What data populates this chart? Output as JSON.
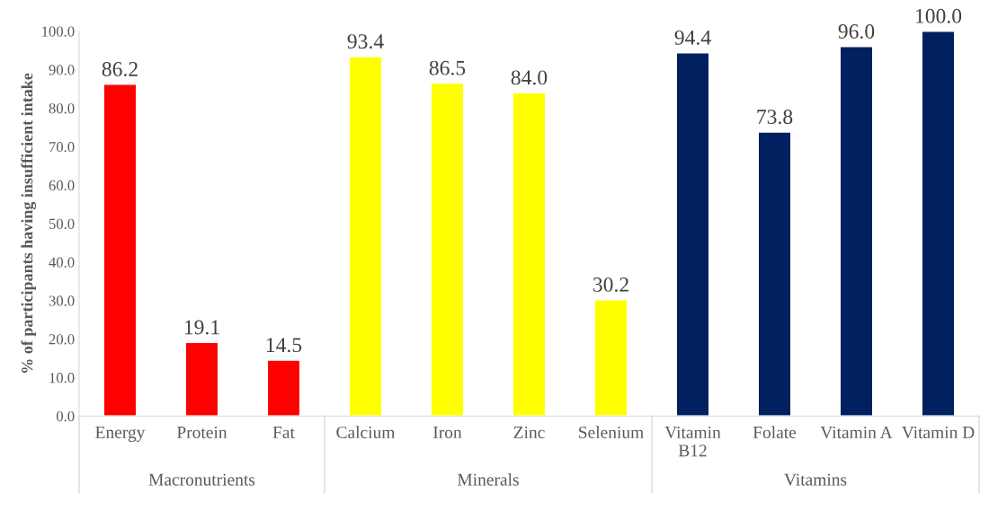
{
  "chart_data": {
    "type": "bar",
    "ylabel": "% of participants having insufficient intake",
    "categories": [
      "Energy",
      "Protein",
      "Fat",
      "Calcium",
      "Iron",
      "Zinc",
      "Selenium",
      "Vitamin\nB12",
      "Folate",
      "Vitamin A",
      "Vitamin D"
    ],
    "values": [
      86.2,
      19.1,
      14.5,
      93.4,
      86.5,
      84.0,
      30.2,
      94.4,
      73.8,
      96.0,
      100.0
    ],
    "value_labels": [
      "86.2",
      "19.1",
      "14.5",
      "93.4",
      "86.5",
      "84.0",
      "30.2",
      "94.4",
      "73.8",
      "96.0",
      "100.0"
    ],
    "colors": [
      "#ff0000",
      "#ff0000",
      "#ff0000",
      "#ffff00",
      "#ffff00",
      "#ffff00",
      "#ffff00",
      "#002060",
      "#002060",
      "#002060",
      "#002060"
    ],
    "annotations": [
      "Macronutrients",
      "Minerals",
      "Vitamins"
    ],
    "ylim": [
      0,
      100
    ],
    "yticks": [
      {
        "value": 0,
        "label": "0.0"
      },
      {
        "value": 10,
        "label": "10.0"
      },
      {
        "value": 20,
        "label": "20.0"
      },
      {
        "value": 30,
        "label": "30.0"
      },
      {
        "value": 40,
        "label": "40.0"
      },
      {
        "value": 50,
        "label": "50.0"
      },
      {
        "value": 60,
        "label": "60.0"
      },
      {
        "value": 70,
        "label": "70.0"
      },
      {
        "value": 80,
        "label": "80.0"
      },
      {
        "value": 90,
        "label": "90.0"
      },
      {
        "value": 100,
        "label": "100.0"
      }
    ],
    "grid": false,
    "legend": false
  }
}
